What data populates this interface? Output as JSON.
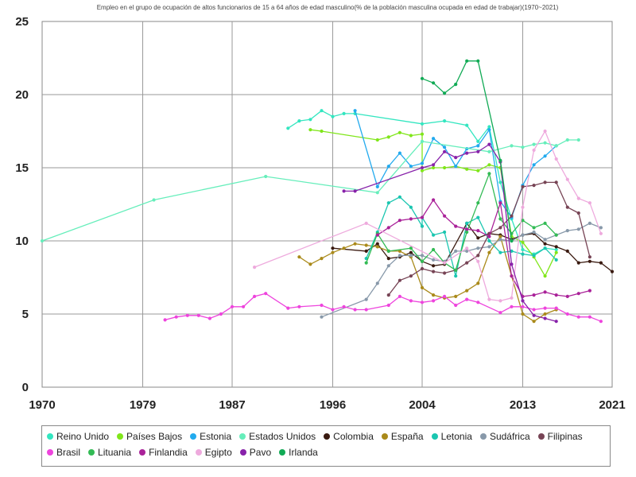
{
  "chart_data": {
    "type": "line",
    "title": "Empleo en el grupo de ocupación de altos funcionarios de 15 a 64 años de edad masculino(% de la población masculina ocupada en edad de trabajar)(1970~2021)",
    "xlabel": "",
    "ylabel": "",
    "xlim": [
      1970,
      2021
    ],
    "ylim": [
      0,
      25
    ],
    "x_ticks": [
      "1970",
      "1979",
      "1987",
      "1996",
      "2004",
      "2013",
      "2021"
    ],
    "y_ticks": [
      "0",
      "5",
      "10",
      "15",
      "20",
      "25"
    ],
    "grid": true,
    "legend_position": "bottom",
    "series": [
      {
        "name": "Reino Unido",
        "color": "#33e6c0",
        "points": [
          [
            1992,
            17.7
          ],
          [
            1993,
            18.2
          ],
          [
            1994,
            18.3
          ],
          [
            1995,
            18.9
          ],
          [
            1996,
            18.5
          ],
          [
            1997,
            18.7
          ],
          [
            1998,
            18.7
          ],
          [
            2004,
            18.0
          ],
          [
            2006,
            18.2
          ],
          [
            2008,
            17.9
          ],
          [
            2009,
            16.8
          ],
          [
            2010,
            17.8
          ],
          [
            2011,
            14.0
          ],
          [
            2012,
            11.5
          ],
          [
            2013,
            9.4
          ],
          [
            2014,
            9.1
          ],
          [
            2015,
            9.5
          ],
          [
            2016,
            9.4
          ]
        ]
      },
      {
        "name": "Países Bajos",
        "color": "#80e61a",
        "points": [
          [
            1994,
            17.6
          ],
          [
            1995,
            17.5
          ],
          [
            2000,
            16.9
          ],
          [
            2001,
            17.1
          ],
          [
            2002,
            17.4
          ],
          [
            2003,
            17.2
          ],
          [
            2004,
            17.3
          ],
          [
            2004,
            14.8
          ],
          [
            2005,
            15.0
          ],
          [
            2006,
            15.0
          ],
          [
            2007,
            15.1
          ],
          [
            2008,
            14.9
          ],
          [
            2009,
            14.8
          ],
          [
            2010,
            15.2
          ],
          [
            2011,
            15.0
          ],
          [
            2012,
            10.3
          ],
          [
            2013,
            9.9
          ],
          [
            2014,
            8.9
          ],
          [
            2015,
            7.6
          ],
          [
            2016,
            9.2
          ]
        ]
      },
      {
        "name": "Estonia",
        "color": "#22aaee",
        "points": [
          [
            1998,
            18.9
          ],
          [
            2000,
            13.7
          ],
          [
            2001,
            15.1
          ],
          [
            2002,
            16.0
          ],
          [
            2003,
            15.1
          ],
          [
            2004,
            15.3
          ],
          [
            2005,
            17.0
          ],
          [
            2006,
            16.4
          ],
          [
            2007,
            15.1
          ],
          [
            2008,
            16.3
          ],
          [
            2009,
            16.5
          ],
          [
            2010,
            17.6
          ],
          [
            2011,
            12.7
          ],
          [
            2012,
            11.6
          ],
          [
            2013,
            13.8
          ],
          [
            2014,
            15.2
          ],
          [
            2015,
            15.8
          ],
          [
            2016,
            16.5
          ]
        ]
      },
      {
        "name": "Estados Unidos",
        "color": "#66eebb",
        "points": [
          [
            1970,
            10.0
          ],
          [
            1980,
            12.8
          ],
          [
            1990,
            14.4
          ],
          [
            2000,
            13.3
          ],
          [
            2004,
            16.8
          ],
          [
            2010,
            16.1
          ],
          [
            2012,
            16.5
          ],
          [
            2013,
            16.4
          ],
          [
            2014,
            16.6
          ],
          [
            2015,
            16.7
          ],
          [
            2016,
            16.5
          ],
          [
            2017,
            16.9
          ],
          [
            2018,
            16.9
          ]
        ]
      },
      {
        "name": "Colombia",
        "color": "#3a1a10",
        "points": [
          [
            1996,
            9.5
          ],
          [
            1999,
            9.3
          ],
          [
            2000,
            9.8
          ],
          [
            2001,
            8.8
          ],
          [
            2002,
            8.9
          ],
          [
            2003,
            9.2
          ],
          [
            2004,
            8.6
          ],
          [
            2005,
            8.3
          ],
          [
            2006,
            8.4
          ],
          [
            2008,
            11.2
          ],
          [
            2009,
            10.2
          ],
          [
            2010,
            10.5
          ],
          [
            2011,
            10.4
          ],
          [
            2012,
            10.1
          ],
          [
            2013,
            10.4
          ],
          [
            2014,
            10.5
          ],
          [
            2015,
            9.8
          ],
          [
            2016,
            9.6
          ],
          [
            2017,
            9.3
          ],
          [
            2018,
            8.5
          ],
          [
            2019,
            8.6
          ],
          [
            2020,
            8.5
          ],
          [
            2021,
            7.9
          ]
        ]
      },
      {
        "name": "España",
        "color": "#aa8a1a",
        "points": [
          [
            1993,
            8.9
          ],
          [
            1994,
            8.4
          ],
          [
            1995,
            8.8
          ],
          [
            1996,
            9.2
          ],
          [
            1997,
            9.5
          ],
          [
            1998,
            9.8
          ],
          [
            1999,
            9.7
          ],
          [
            2000,
            9.6
          ],
          [
            2001,
            9.3
          ],
          [
            2002,
            9.3
          ],
          [
            2003,
            8.9
          ],
          [
            2004,
            6.8
          ],
          [
            2005,
            6.3
          ],
          [
            2006,
            6.1
          ],
          [
            2007,
            6.2
          ],
          [
            2008,
            6.6
          ],
          [
            2009,
            7.1
          ],
          [
            2010,
            9.2
          ],
          [
            2011,
            10.3
          ],
          [
            2012,
            7.6
          ],
          [
            2013,
            5.0
          ],
          [
            2014,
            4.5
          ],
          [
            2015,
            5.0
          ],
          [
            2016,
            5.3
          ]
        ]
      },
      {
        "name": "Letonia",
        "color": "#1ac6b0",
        "points": [
          [
            1999,
            8.8
          ],
          [
            2000,
            10.6
          ],
          [
            2001,
            12.6
          ],
          [
            2002,
            13.0
          ],
          [
            2003,
            12.3
          ],
          [
            2004,
            11.0
          ],
          [
            2004,
            11.6
          ],
          [
            2005,
            10.4
          ],
          [
            2006,
            10.6
          ],
          [
            2007,
            7.6
          ],
          [
            2008,
            11.2
          ],
          [
            2009,
            11.6
          ],
          [
            2010,
            10.0
          ],
          [
            2011,
            9.2
          ],
          [
            2012,
            9.3
          ],
          [
            2013,
            9.1
          ],
          [
            2014,
            9.0
          ],
          [
            2015,
            9.5
          ],
          [
            2016,
            8.7
          ]
        ]
      },
      {
        "name": "Sudáfrica",
        "color": "#8899aa",
        "points": [
          [
            1995,
            4.8
          ],
          [
            1999,
            6.0
          ],
          [
            2000,
            7.1
          ],
          [
            2001,
            8.3
          ],
          [
            2002,
            9.0
          ],
          [
            2003,
            9.0
          ],
          [
            2004,
            9.0
          ],
          [
            2005,
            8.7
          ],
          [
            2006,
            8.6
          ],
          [
            2007,
            9.3
          ],
          [
            2008,
            9.3
          ],
          [
            2009,
            9.5
          ],
          [
            2010,
            9.6
          ],
          [
            2011,
            10.1
          ],
          [
            2012,
            10.0
          ],
          [
            2013,
            10.4
          ],
          [
            2014,
            10.6
          ],
          [
            2015,
            10.1
          ],
          [
            2016,
            10.4
          ],
          [
            2017,
            10.7
          ],
          [
            2018,
            10.8
          ],
          [
            2019,
            11.2
          ],
          [
            2020,
            10.9
          ]
        ]
      },
      {
        "name": "Filipinas",
        "color": "#774455",
        "points": [
          [
            2001,
            6.3
          ],
          [
            2002,
            7.3
          ],
          [
            2003,
            7.6
          ],
          [
            2004,
            8.1
          ],
          [
            2005,
            7.9
          ],
          [
            2006,
            7.8
          ],
          [
            2007,
            8.0
          ],
          [
            2008,
            8.5
          ],
          [
            2009,
            9.0
          ],
          [
            2010,
            10.5
          ],
          [
            2011,
            10.9
          ],
          [
            2012,
            11.7
          ],
          [
            2013,
            13.7
          ],
          [
            2014,
            13.8
          ],
          [
            2015,
            14.0
          ],
          [
            2016,
            14.0
          ],
          [
            2017,
            12.3
          ],
          [
            2018,
            11.9
          ],
          [
            2019,
            8.9
          ]
        ]
      },
      {
        "name": "Brasil",
        "color": "#ee44dd",
        "points": [
          [
            1981,
            4.6
          ],
          [
            1982,
            4.8
          ],
          [
            1983,
            4.9
          ],
          [
            1984,
            4.9
          ],
          [
            1985,
            4.7
          ],
          [
            1986,
            5.0
          ],
          [
            1987,
            5.5
          ],
          [
            1988,
            5.5
          ],
          [
            1989,
            6.2
          ],
          [
            1990,
            6.4
          ],
          [
            1992,
            5.4
          ],
          [
            1993,
            5.5
          ],
          [
            1995,
            5.6
          ],
          [
            1996,
            5.3
          ],
          [
            1997,
            5.5
          ],
          [
            1998,
            5.3
          ],
          [
            1999,
            5.3
          ],
          [
            2001,
            5.6
          ],
          [
            2002,
            6.2
          ],
          [
            2003,
            5.9
          ],
          [
            2004,
            5.8
          ],
          [
            2005,
            5.9
          ],
          [
            2006,
            6.2
          ],
          [
            2007,
            5.6
          ],
          [
            2008,
            6.0
          ],
          [
            2009,
            5.8
          ],
          [
            2011,
            5.1
          ],
          [
            2012,
            5.5
          ],
          [
            2013,
            5.5
          ],
          [
            2014,
            5.3
          ],
          [
            2015,
            5.4
          ],
          [
            2016,
            5.4
          ],
          [
            2017,
            5.0
          ],
          [
            2018,
            4.8
          ],
          [
            2019,
            4.8
          ],
          [
            2020,
            4.5
          ]
        ]
      },
      {
        "name": "Lituania",
        "color": "#33bb55",
        "points": [
          [
            1999,
            8.5
          ],
          [
            2000,
            10.5
          ],
          [
            2001,
            9.3
          ],
          [
            2003,
            9.5
          ],
          [
            2004,
            8.6
          ],
          [
            2005,
            9.4
          ],
          [
            2006,
            8.5
          ],
          [
            2007,
            8.0
          ],
          [
            2008,
            10.6
          ],
          [
            2009,
            12.6
          ],
          [
            2010,
            14.6
          ],
          [
            2011,
            11.5
          ],
          [
            2012,
            10.5
          ],
          [
            2013,
            11.4
          ],
          [
            2014,
            10.9
          ],
          [
            2015,
            11.2
          ],
          [
            2016,
            10.4
          ]
        ]
      },
      {
        "name": "Finlandia",
        "color": "#aa2299",
        "points": [
          [
            2000,
            10.4
          ],
          [
            2001,
            10.9
          ],
          [
            2002,
            11.4
          ],
          [
            2003,
            11.5
          ],
          [
            2004,
            11.6
          ],
          [
            2005,
            12.8
          ],
          [
            2006,
            11.7
          ],
          [
            2007,
            11.0
          ],
          [
            2008,
            10.8
          ],
          [
            2009,
            10.7
          ],
          [
            2010,
            10.3
          ],
          [
            2011,
            12.6
          ],
          [
            2012,
            7.6
          ],
          [
            2013,
            6.2
          ],
          [
            2014,
            6.3
          ],
          [
            2015,
            6.5
          ],
          [
            2016,
            6.3
          ],
          [
            2017,
            6.2
          ],
          [
            2018,
            6.4
          ],
          [
            2019,
            6.6
          ]
        ]
      },
      {
        "name": "Egipto",
        "color": "#eeaadd",
        "points": [
          [
            1989,
            8.2
          ],
          [
            1999,
            11.2
          ],
          [
            2006,
            8.5
          ],
          [
            2008,
            9.5
          ],
          [
            2009,
            8.6
          ],
          [
            2010,
            6.0
          ],
          [
            2011,
            5.9
          ],
          [
            2012,
            6.1
          ],
          [
            2013,
            12.3
          ],
          [
            2014,
            16.2
          ],
          [
            2015,
            17.5
          ],
          [
            2016,
            15.6
          ],
          [
            2017,
            14.2
          ],
          [
            2018,
            12.9
          ],
          [
            2019,
            12.6
          ],
          [
            2020,
            10.5
          ]
        ]
      },
      {
        "name": "Pavo",
        "color": "#8822aa",
        "points": [
          [
            1997,
            13.4
          ],
          [
            1998,
            13.4
          ],
          [
            2004,
            15.0
          ],
          [
            2005,
            15.2
          ],
          [
            2006,
            16.1
          ],
          [
            2007,
            15.7
          ],
          [
            2008,
            16.0
          ],
          [
            2009,
            16.1
          ],
          [
            2010,
            16.6
          ],
          [
            2011,
            15.4
          ],
          [
            2012,
            8.4
          ],
          [
            2013,
            5.9
          ],
          [
            2014,
            4.9
          ],
          [
            2015,
            4.7
          ],
          [
            2016,
            4.5
          ]
        ]
      },
      {
        "name": "Irlanda",
        "color": "#11aa55",
        "points": [
          [
            2004,
            21.1
          ],
          [
            2005,
            20.8
          ],
          [
            2006,
            20.1
          ],
          [
            2007,
            20.7
          ],
          [
            2008,
            22.3
          ],
          [
            2009,
            22.3
          ],
          [
            2011,
            15.5
          ],
          [
            2012,
            10.0
          ]
        ]
      }
    ]
  }
}
